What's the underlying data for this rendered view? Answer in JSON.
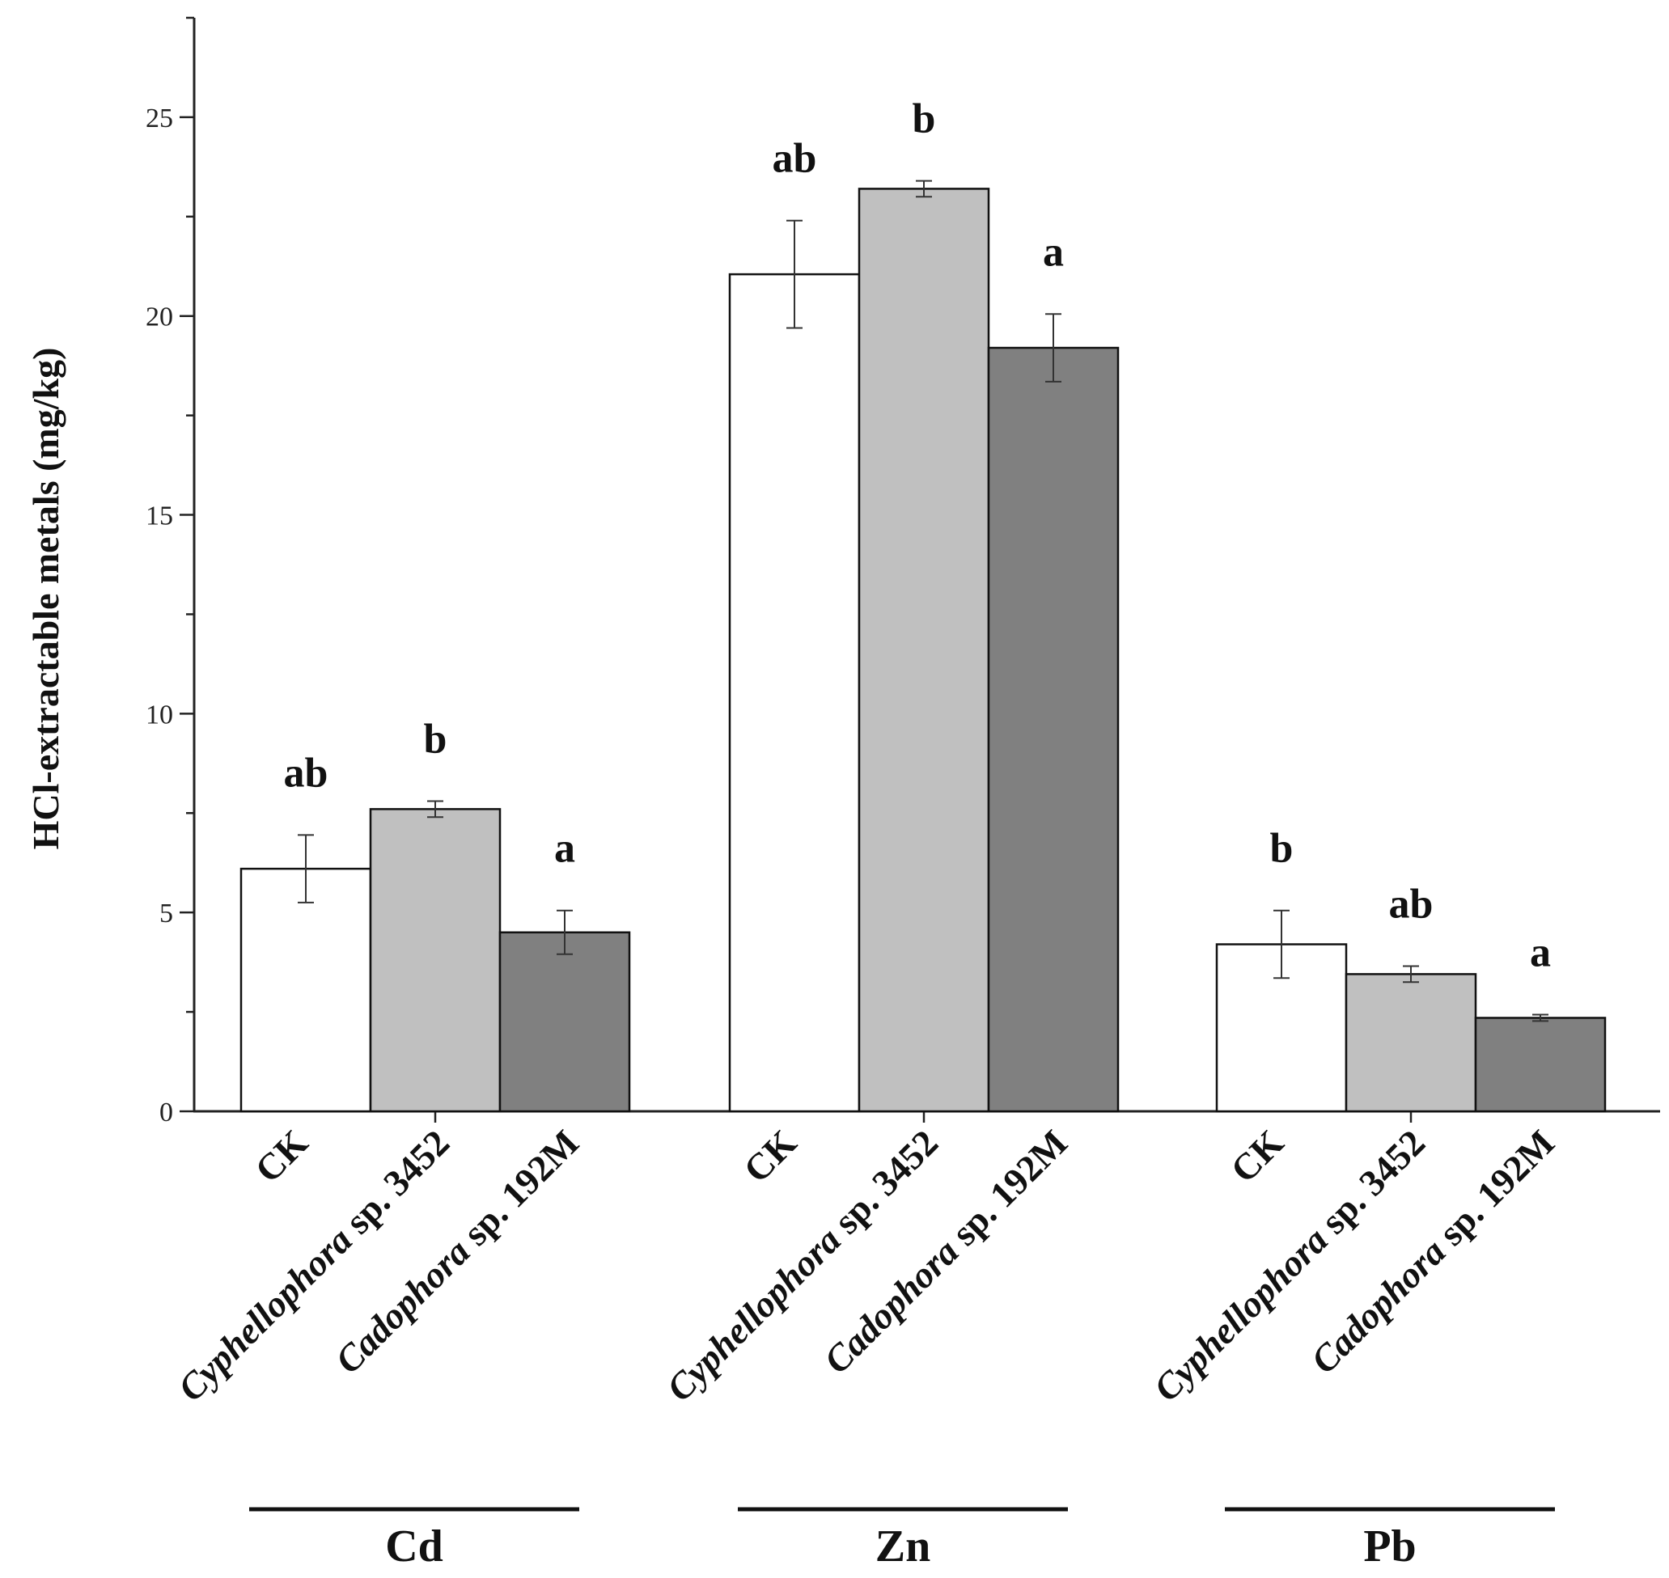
{
  "chart_data": {
    "type": "bar",
    "title": "",
    "xlabel": "",
    "ylabel": "HCl-extractable metals (mg/kg)",
    "ylim": [
      0,
      27.5
    ],
    "yticks": [
      0,
      5,
      10,
      15,
      20,
      25
    ],
    "groups": [
      {
        "name": "Cd",
        "bars": [
          {
            "treatment": "CK",
            "value": 6.1,
            "error": 0.85,
            "letter": "ab"
          },
          {
            "treatment": "Cyphellophora sp. 3452",
            "value": 7.6,
            "error": 0.2,
            "letter": "b"
          },
          {
            "treatment": "Cadophora sp. 192M",
            "value": 4.5,
            "error": 0.55,
            "letter": "a"
          }
        ]
      },
      {
        "name": "Zn",
        "bars": [
          {
            "treatment": "CK",
            "value": 21.05,
            "error": 1.35,
            "letter": "ab"
          },
          {
            "treatment": "Cyphellophora sp. 3452",
            "value": 23.2,
            "error": 0.2,
            "letter": "b"
          },
          {
            "treatment": "Cadophora sp. 192M",
            "value": 19.2,
            "error": 0.85,
            "letter": "a"
          }
        ]
      },
      {
        "name": "Pb",
        "bars": [
          {
            "treatment": "CK",
            "value": 4.2,
            "error": 0.85,
            "letter": "b"
          },
          {
            "treatment": "Cyphellophora sp. 3452",
            "value": 3.45,
            "error": 0.2,
            "letter": "ab"
          },
          {
            "treatment": "Cadophora sp. 192M",
            "value": 2.35,
            "error": 0.08,
            "letter": "a"
          }
        ]
      }
    ],
    "categories": [
      {
        "italic": "",
        "rest": "CK"
      },
      {
        "italic": "Cyphellophora",
        "rest": " sp. 3452"
      },
      {
        "italic": "Cadophora",
        "rest": " sp. 192M"
      }
    ],
    "bar_colors": [
      "#ffffff",
      "#c0c0c0",
      "#808080"
    ]
  }
}
